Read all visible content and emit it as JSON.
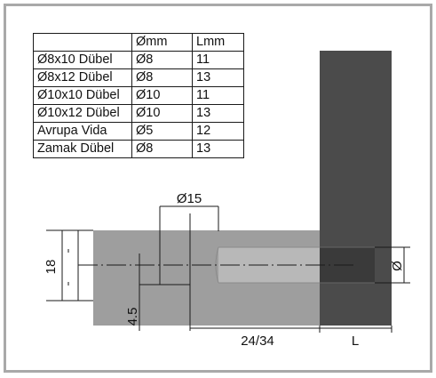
{
  "table": {
    "header": [
      "",
      "Ømm",
      "Lmm"
    ],
    "rows": [
      [
        "Ø8x10 Dübel",
        "Ø8",
        "11"
      ],
      [
        "Ø8x12 Dübel",
        "Ø8",
        "13"
      ],
      [
        "Ø10x10 Dübel",
        "Ø10",
        "11"
      ],
      [
        "Ø10x12 Dübel",
        "Ø10",
        "13"
      ],
      [
        "Avrupa Vida",
        "Ø5",
        "12"
      ],
      [
        "Zamak Dübel",
        "Ø8",
        "13"
      ]
    ]
  },
  "dimensions": {
    "bore_diameter": "Ø15",
    "panel_thickness": "18",
    "offset": "4.5",
    "depth": "24/34",
    "length": "L",
    "diameter": "Ø"
  },
  "colors": {
    "frame_border": "#a9a9a9",
    "panel_gray": "#9e9e9e",
    "panel_dark": "#4b4b4b",
    "bore_light": "#b8b8b8",
    "line": "#1a1a1a"
  }
}
